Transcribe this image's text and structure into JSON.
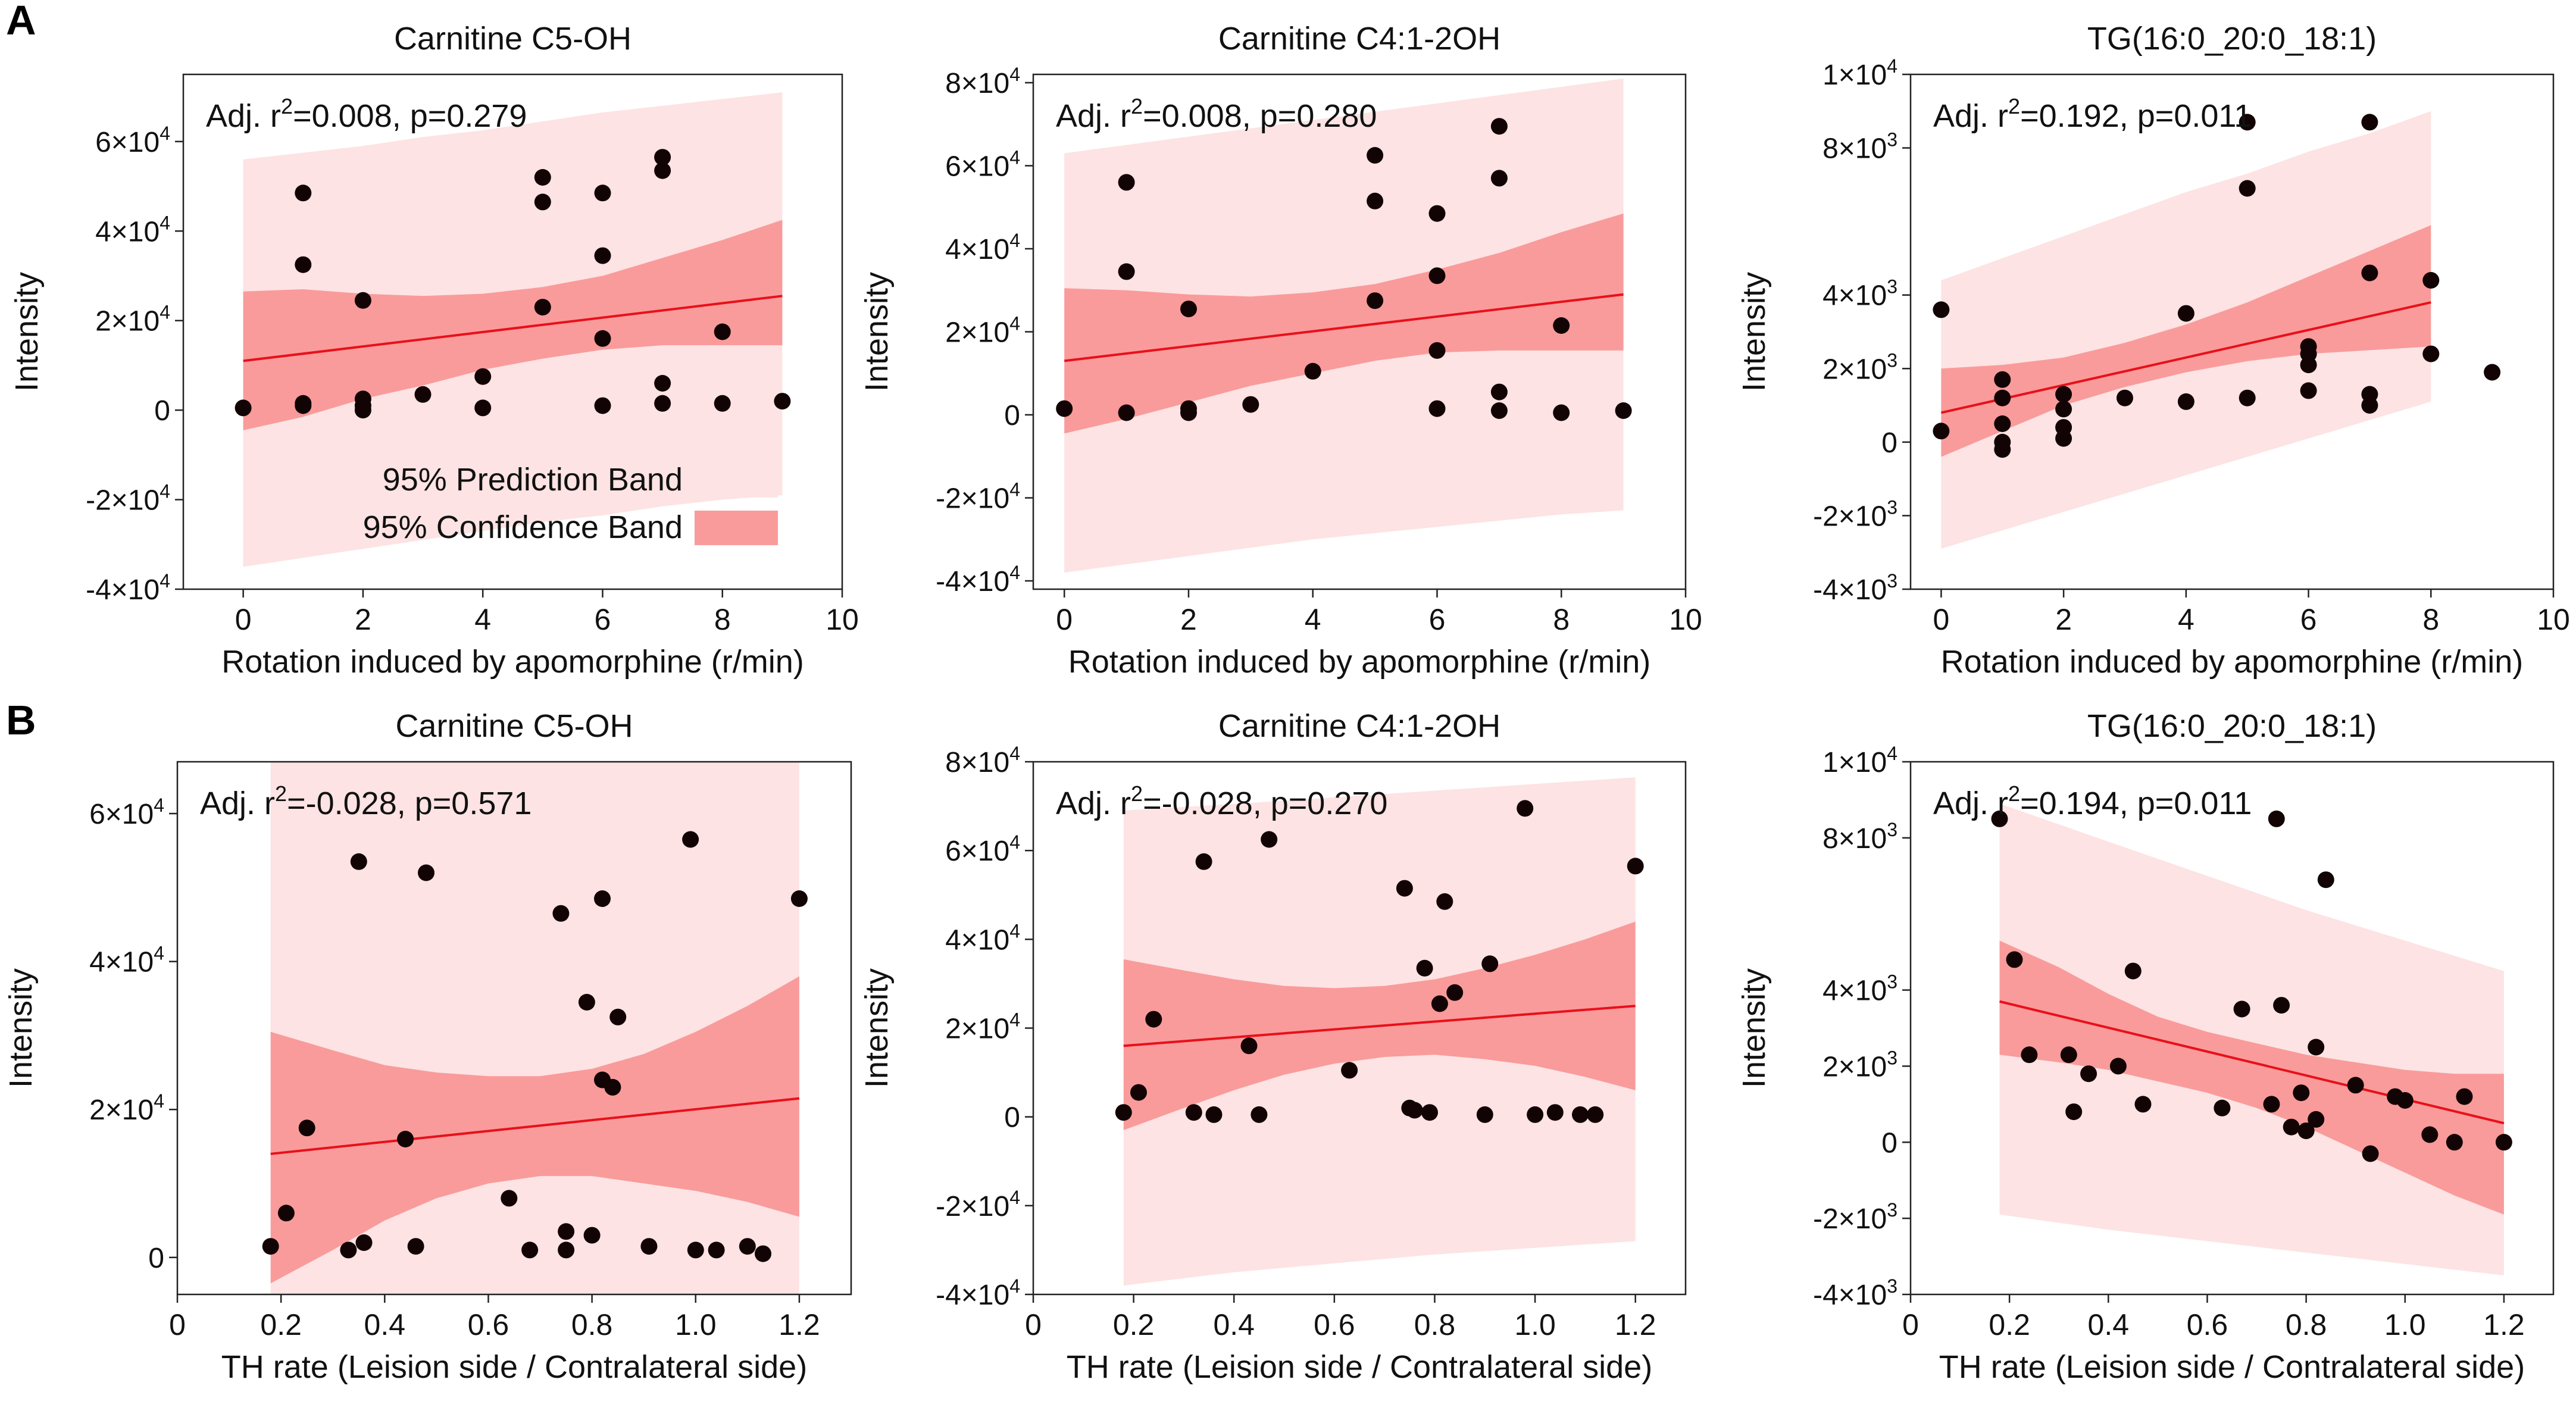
{
  "panels": {
    "row_a": "A",
    "row_b": "B"
  },
  "colors": {
    "prediction_band": "#fde3e3",
    "confidence_band": "#f99b9b",
    "fit_line": "#e8101a",
    "points": "#120404",
    "frame": "#222222"
  },
  "legend": {
    "prediction": "95% Prediction Band",
    "confidence": "95% Confidence Band"
  },
  "chart_data": [
    {
      "id": "a1",
      "type": "scatter",
      "title": "Carnitine C5-OH",
      "xlabel": "Rotation induced by apomorphine (r/min)",
      "ylabel": "Intensity",
      "annotation": {
        "pre": "Adj. r",
        "sup": "2",
        "post": "=0.008, p=0.279"
      },
      "xlim": [
        -1,
        10
      ],
      "ylim": [
        -40000,
        75000
      ],
      "xticks": [
        0,
        2,
        4,
        6,
        8,
        10
      ],
      "xticklabels": [
        "0",
        "2",
        "4",
        "6",
        "8",
        "10"
      ],
      "yticks": [
        -40000,
        -20000,
        0,
        20000,
        40000,
        60000
      ],
      "yticklabels": [
        {
          "m": "-4×10",
          "e": "4"
        },
        {
          "m": "-2×10",
          "e": "4"
        },
        {
          "m": "0",
          "e": ""
        },
        {
          "m": "2×10",
          "e": "4"
        },
        {
          "m": "4×10",
          "e": "4"
        },
        {
          "m": "6×10",
          "e": "4"
        }
      ],
      "show_legend": true,
      "fit": {
        "x": [
          0,
          9
        ],
        "y": [
          11000,
          25500
        ]
      },
      "confidence_band": {
        "x": [
          0,
          1,
          2,
          3,
          4,
          5,
          6,
          7,
          8,
          9
        ],
        "upper": [
          26500,
          27000,
          26000,
          25500,
          26000,
          27500,
          30000,
          34000,
          38000,
          42500
        ],
        "lower": [
          -4500,
          -1500,
          2500,
          5500,
          9000,
          11500,
          13500,
          14500,
          14500,
          14500
        ]
      },
      "prediction_band": {
        "x": [
          0,
          1,
          2,
          3,
          4,
          5,
          6,
          7,
          8,
          9
        ],
        "upper": [
          56000,
          57500,
          59000,
          61000,
          62500,
          64500,
          66500,
          68000,
          69500,
          71000
        ],
        "lower": [
          -35000,
          -33000,
          -31000,
          -29000,
          -27000,
          -25000,
          -23500,
          -21500,
          -20000,
          -19000
        ]
      },
      "points": {
        "x": [
          0,
          1,
          1,
          1,
          1,
          2,
          2,
          2,
          2,
          3,
          4,
          4,
          5,
          5,
          5,
          6,
          6,
          6,
          6,
          7,
          7,
          7,
          7,
          8,
          8,
          9
        ],
        "y": [
          500,
          48500,
          32500,
          1000,
          1500,
          24500,
          2500,
          1000,
          0,
          3500,
          7500,
          500,
          52000,
          46500,
          23000,
          48500,
          34500,
          16000,
          1000,
          56500,
          53500,
          6000,
          1500,
          17500,
          1500,
          2000
        ]
      }
    },
    {
      "id": "a2",
      "type": "scatter",
      "title": "Carnitine C4:1-2OH",
      "xlabel": "Rotation induced by apomorphine (r/min)",
      "ylabel": "Intensity",
      "annotation": {
        "pre": "Adj. r",
        "sup": "2",
        "post": "=0.008, p=0.280"
      },
      "xlim": [
        -0.5,
        10
      ],
      "ylim": [
        -42000,
        82000
      ],
      "xticks": [
        0,
        2,
        4,
        6,
        8,
        10
      ],
      "xticklabels": [
        "0",
        "2",
        "4",
        "6",
        "8",
        "10"
      ],
      "yticks": [
        -40000,
        -20000,
        0,
        20000,
        40000,
        60000,
        80000
      ],
      "yticklabels": [
        {
          "m": "-4×10",
          "e": "4"
        },
        {
          "m": "-2×10",
          "e": "4"
        },
        {
          "m": "0",
          "e": ""
        },
        {
          "m": "2×10",
          "e": "4"
        },
        {
          "m": "4×10",
          "e": "4"
        },
        {
          "m": "6×10",
          "e": "4"
        },
        {
          "m": "8×10",
          "e": "4"
        }
      ],
      "show_legend": false,
      "fit": {
        "x": [
          0,
          9
        ],
        "y": [
          13000,
          29000
        ]
      },
      "confidence_band": {
        "x": [
          0,
          1,
          2,
          3,
          4,
          5,
          6,
          7,
          8,
          9
        ],
        "upper": [
          30500,
          30000,
          29000,
          28500,
          29500,
          31500,
          35000,
          39000,
          44000,
          48500
        ],
        "lower": [
          -4500,
          -1000,
          3000,
          7000,
          10000,
          13000,
          15000,
          15500,
          15500,
          15500
        ]
      },
      "prediction_band": {
        "x": [
          0,
          1,
          2,
          3,
          4,
          5,
          6,
          7,
          8,
          9
        ],
        "upper": [
          63000,
          65000,
          67000,
          69000,
          71000,
          73000,
          75000,
          77000,
          79000,
          81000
        ],
        "lower": [
          -38000,
          -36000,
          -34000,
          -32000,
          -30000,
          -28500,
          -27000,
          -25500,
          -24000,
          -23000
        ]
      },
      "points": {
        "x": [
          0,
          1,
          1,
          1,
          2,
          2,
          2,
          3,
          4,
          5,
          5,
          5,
          6,
          6,
          6,
          6,
          7,
          7,
          7,
          7,
          8,
          8,
          9
        ],
        "y": [
          1500,
          56000,
          34500,
          500,
          25500,
          1500,
          500,
          2500,
          10500,
          62500,
          51500,
          27500,
          48500,
          33500,
          15500,
          1500,
          69500,
          57000,
          5500,
          1000,
          21500,
          500,
          1000
        ]
      }
    },
    {
      "id": "a3",
      "type": "scatter",
      "title": "TG(16:0_20:0_18:1)",
      "xlabel": "Rotation induced by apomorphine (r/min)",
      "ylabel": "Intensity",
      "annotation": {
        "pre": "Adj. r",
        "sup": "2",
        "post": "=0.192, p=0.011"
      },
      "xlim": [
        -0.5,
        10
      ],
      "ylim": [
        -4,
        10
      ],
      "xticks": [
        0,
        2,
        4,
        6,
        8,
        10
      ],
      "xticklabels": [
        "0",
        "2",
        "4",
        "6",
        "8",
        "10"
      ],
      "yticks": [
        -4,
        -2,
        0,
        2,
        4,
        8,
        10
      ],
      "yticklabels": [
        {
          "m": "-4×10",
          "e": "3"
        },
        {
          "m": "-2×10",
          "e": "3"
        },
        {
          "m": "0",
          "e": ""
        },
        {
          "m": "2×10",
          "e": "3"
        },
        {
          "m": "4×10",
          "e": "3"
        },
        {
          "m": "8×10",
          "e": "3"
        },
        {
          "m": "1×10",
          "e": "4"
        }
      ],
      "show_legend": false,
      "fit": {
        "x": [
          0,
          8
        ],
        "y": [
          0.8,
          3.8
        ]
      },
      "confidence_band": {
        "x": [
          0,
          1,
          2,
          3,
          4,
          5,
          6,
          7,
          8
        ],
        "upper": [
          2.0,
          2.1,
          2.3,
          2.7,
          3.2,
          3.8,
          4.5,
          5.2,
          5.9
        ],
        "lower": [
          -0.4,
          0.3,
          1.0,
          1.5,
          1.9,
          2.2,
          2.4,
          2.5,
          2.6
        ]
      },
      "prediction_band": {
        "x": [
          0,
          1,
          2,
          3,
          4,
          5,
          6,
          7,
          8
        ],
        "upper": [
          4.4,
          5.0,
          5.6,
          6.2,
          6.8,
          7.3,
          7.9,
          8.4,
          9.0
        ],
        "lower": [
          -2.9,
          -2.4,
          -1.9,
          -1.4,
          -0.9,
          -0.4,
          0.1,
          0.6,
          1.1
        ]
      },
      "points": {
        "x": [
          0,
          0,
          1,
          1,
          1,
          1,
          1,
          2,
          2,
          2,
          2,
          3,
          4,
          4,
          5,
          5,
          5,
          6,
          6,
          6,
          6,
          7,
          7,
          7,
          7,
          8,
          8,
          9
        ],
        "y": [
          3.6,
          0.3,
          1.7,
          1.2,
          0.5,
          0,
          -0.2,
          1.3,
          0.9,
          0.4,
          0.1,
          1.2,
          3.5,
          1.1,
          8.7,
          6.9,
          1.2,
          2.6,
          2.4,
          2.1,
          1.4,
          8.7,
          4.6,
          1.3,
          1.0,
          4.4,
          2.4,
          1.9
        ]
      }
    },
    {
      "id": "b1",
      "type": "scatter",
      "title": "Carnitine C5-OH",
      "xlabel": "TH rate (Leision side / Contralateral side)",
      "ylabel": "Intensity",
      "annotation": {
        "pre": "Adj. r",
        "sup": "2",
        "post": "=-0.028, p=0.571"
      },
      "xlim": [
        0,
        1.3
      ],
      "ylim": [
        -5000,
        67000
      ],
      "xticks": [
        0,
        0.2,
        0.4,
        0.6,
        0.8,
        1.0,
        1.2
      ],
      "xticklabels": [
        "0",
        "0.2",
        "0.4",
        "0.6",
        "0.8",
        "1.0",
        "1.2"
      ],
      "yticks": [
        0,
        20000,
        40000,
        60000
      ],
      "yticklabels": [
        {
          "m": "0",
          "e": ""
        },
        {
          "m": "2×10",
          "e": "4"
        },
        {
          "m": "4×10",
          "e": "4"
        },
        {
          "m": "6×10",
          "e": "4"
        }
      ],
      "show_legend": false,
      "fit": {
        "x": [
          0.18,
          1.2
        ],
        "y": [
          14000,
          21500
        ]
      },
      "confidence_band": {
        "x": [
          0.18,
          0.3,
          0.4,
          0.5,
          0.6,
          0.7,
          0.8,
          0.9,
          1.0,
          1.1,
          1.2
        ],
        "upper": [
          30500,
          28000,
          26000,
          25000,
          24500,
          24500,
          25500,
          27500,
          30500,
          34000,
          38000
        ],
        "lower": [
          -3500,
          1000,
          5000,
          8000,
          10000,
          11000,
          11000,
          10000,
          9000,
          7500,
          5500
        ]
      },
      "prediction_band": {
        "x": [
          0.18,
          1.2
        ],
        "upper": [
          67000,
          67000
        ],
        "lower": [
          -5000,
          -5000
        ]
      },
      "points": {
        "x": [
          0.18,
          0.21,
          0.25,
          0.33,
          0.36,
          0.35,
          0.44,
          0.46,
          0.48,
          0.64,
          0.68,
          0.74,
          0.75,
          0.75,
          0.79,
          0.8,
          0.82,
          0.82,
          0.84,
          0.85,
          0.91,
          0.99,
          1.0,
          1.04,
          1.1,
          1.13,
          1.2
        ],
        "y": [
          1500,
          6000,
          17500,
          1000,
          2000,
          53500,
          16000,
          1500,
          52000,
          8000,
          1000,
          46500,
          3500,
          1000,
          34500,
          3000,
          24000,
          48500,
          23000,
          32500,
          1500,
          56500,
          1000,
          1000,
          1500,
          500,
          48500
        ]
      }
    },
    {
      "id": "b2",
      "type": "scatter",
      "title": "Carnitine C4:1-2OH",
      "xlabel": "TH rate (Leision side / Contralateral side)",
      "ylabel": "Intensity",
      "annotation": {
        "pre": "Adj. r",
        "sup": "2",
        "post": "=-0.028, p=0.270"
      },
      "xlim": [
        0,
        1.3
      ],
      "ylim": [
        -40000,
        80000
      ],
      "xticks": [
        0,
        0.2,
        0.4,
        0.6,
        0.8,
        1.0,
        1.2
      ],
      "xticklabels": [
        "0",
        "0.2",
        "0.4",
        "0.6",
        "0.8",
        "1.0",
        "1.2"
      ],
      "yticks": [
        -40000,
        -20000,
        0,
        20000,
        40000,
        60000,
        80000
      ],
      "yticklabels": [
        {
          "m": "-4×10",
          "e": "4"
        },
        {
          "m": "-2×10",
          "e": "4"
        },
        {
          "m": "0",
          "e": ""
        },
        {
          "m": "2×10",
          "e": "4"
        },
        {
          "m": "4×10",
          "e": "4"
        },
        {
          "m": "6×10",
          "e": "4"
        },
        {
          "m": "8×10",
          "e": "4"
        }
      ],
      "show_legend": false,
      "fit": {
        "x": [
          0.18,
          1.2
        ],
        "y": [
          16000,
          25000
        ]
      },
      "confidence_band": {
        "x": [
          0.18,
          0.3,
          0.4,
          0.5,
          0.6,
          0.7,
          0.8,
          0.9,
          1.0,
          1.1,
          1.2
        ],
        "upper": [
          35500,
          33000,
          31000,
          29500,
          29000,
          29500,
          31000,
          33500,
          36500,
          40000,
          44000
        ],
        "lower": [
          -3000,
          2000,
          6000,
          9500,
          12000,
          13500,
          14000,
          13000,
          11500,
          9000,
          6000
        ]
      },
      "prediction_band": {
        "x": [
          0.18,
          0.4,
          0.6,
          0.8,
          1.0,
          1.2
        ],
        "upper": [
          69000,
          70500,
          72000,
          73500,
          75000,
          76500
        ],
        "lower": [
          -38000,
          -35000,
          -33000,
          -31000,
          -29500,
          -28000
        ]
      },
      "points": {
        "x": [
          0.18,
          0.21,
          0.24,
          0.32,
          0.34,
          0.36,
          0.43,
          0.45,
          0.47,
          0.63,
          0.74,
          0.75,
          0.76,
          0.78,
          0.79,
          0.81,
          0.82,
          0.84,
          0.9,
          0.91,
          0.98,
          1.0,
          1.04,
          1.09,
          1.12,
          1.2
        ],
        "y": [
          1000,
          5500,
          22000,
          1000,
          57500,
          500,
          16000,
          500,
          62500,
          10500,
          51500,
          2000,
          1500,
          33500,
          1000,
          25500,
          48500,
          28000,
          500,
          34500,
          69500,
          500,
          1000,
          500,
          500,
          56500
        ]
      }
    },
    {
      "id": "b3",
      "type": "scatter",
      "title": "TG(16:0_20:0_18:1)",
      "xlabel": "TH rate (Leision side / Contralateral side)",
      "ylabel": "Intensity",
      "annotation": {
        "pre": "Adj. r",
        "sup": "2",
        "post": "=0.194, p=0.011"
      },
      "xlim": [
        0,
        1.3
      ],
      "ylim": [
        -4,
        10
      ],
      "xticks": [
        0,
        0.2,
        0.4,
        0.6,
        0.8,
        1.0,
        1.2
      ],
      "xticklabels": [
        "0",
        "0.2",
        "0.4",
        "0.6",
        "0.8",
        "1.0",
        "1.2"
      ],
      "yticks": [
        -4,
        -2,
        0,
        2,
        4,
        8,
        10
      ],
      "yticklabels": [
        {
          "m": "-4×10",
          "e": "3"
        },
        {
          "m": "-2×10",
          "e": "3"
        },
        {
          "m": "0",
          "e": ""
        },
        {
          "m": "2×10",
          "e": "3"
        },
        {
          "m": "4×10",
          "e": "3"
        },
        {
          "m": "8×10",
          "e": "3"
        },
        {
          "m": "1×10",
          "e": "4"
        }
      ],
      "show_legend": false,
      "fit": {
        "x": [
          0.18,
          1.2
        ],
        "y": [
          3.7,
          0.5
        ]
      },
      "confidence_band": {
        "x": [
          0.18,
          0.3,
          0.4,
          0.5,
          0.6,
          0.7,
          0.8,
          0.9,
          1.0,
          1.1,
          1.2
        ],
        "upper": [
          5.3,
          4.6,
          3.9,
          3.3,
          2.9,
          2.6,
          2.3,
          2.1,
          1.9,
          1.8,
          1.8
        ],
        "lower": [
          2.3,
          2.1,
          1.9,
          1.6,
          1.3,
          0.9,
          0.4,
          -0.2,
          -0.8,
          -1.4,
          -1.9
        ]
      },
      "prediction_band": {
        "x": [
          0.18,
          0.4,
          0.6,
          0.8,
          1.0,
          1.2
        ],
        "upper": [
          8.9,
          7.9,
          7.0,
          6.1,
          5.3,
          4.5
        ],
        "lower": [
          -1.9,
          -2.3,
          -2.6,
          -2.9,
          -3.2,
          -3.5
        ]
      },
      "points": {
        "x": [
          0.18,
          0.21,
          0.24,
          0.32,
          0.33,
          0.36,
          0.42,
          0.45,
          0.47,
          0.63,
          0.67,
          0.73,
          0.74,
          0.75,
          0.77,
          0.79,
          0.8,
          0.82,
          0.82,
          0.84,
          0.9,
          0.93,
          0.98,
          1.0,
          1.05,
          1.1,
          1.12,
          1.2
        ],
        "y": [
          8.5,
          4.8,
          2.3,
          2.3,
          0.8,
          1.8,
          2.0,
          4.5,
          1.0,
          0.9,
          3.5,
          1.0,
          8.5,
          3.6,
          0.4,
          1.3,
          0.3,
          0.6,
          2.5,
          6.9,
          1.5,
          -0.3,
          1.2,
          1.1,
          0.2,
          0.0,
          1.2,
          0.0
        ]
      }
    }
  ]
}
